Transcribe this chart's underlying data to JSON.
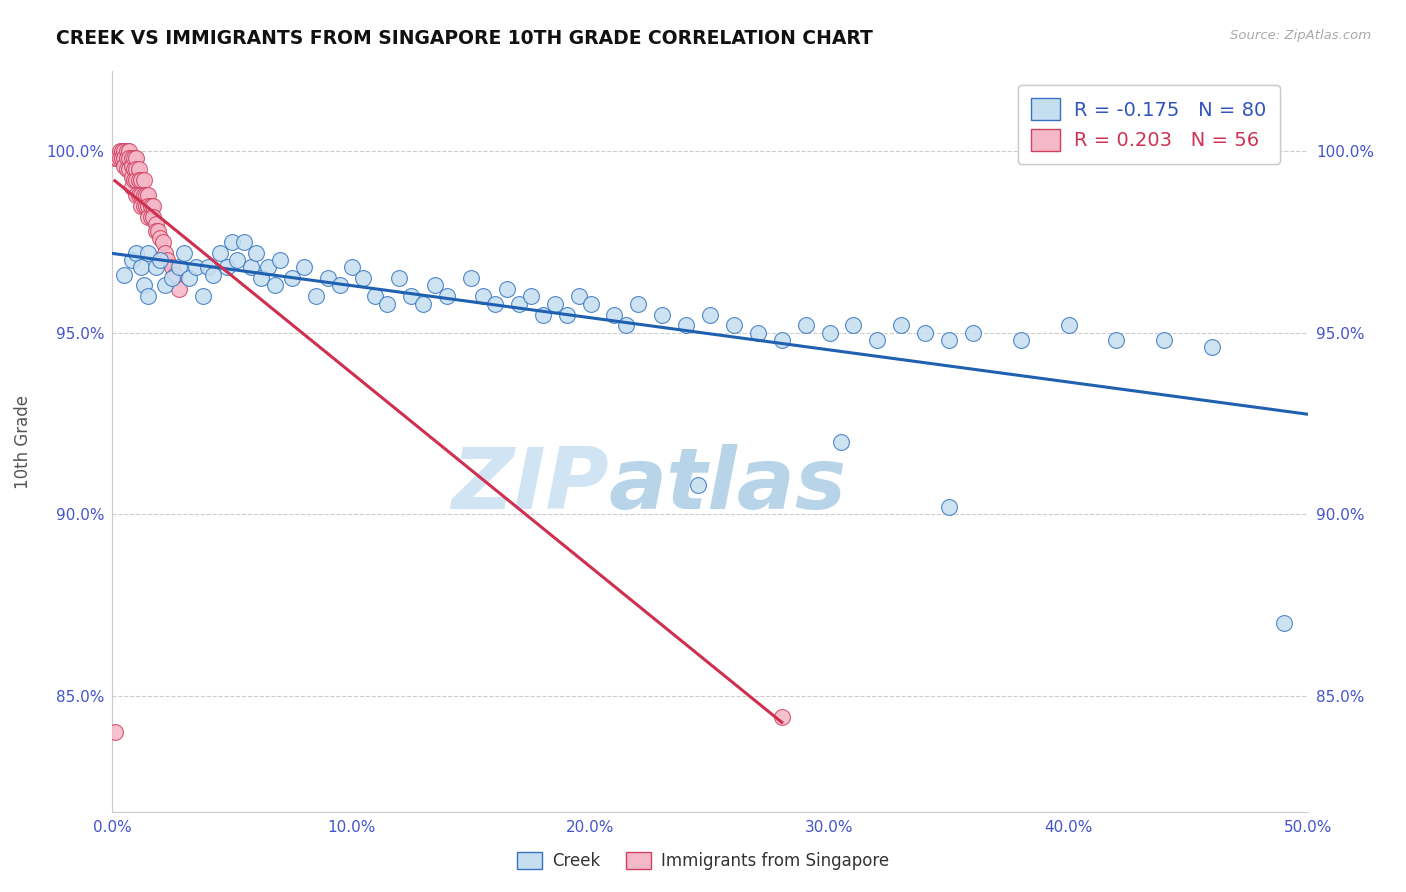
{
  "title": "CREEK VS IMMIGRANTS FROM SINGAPORE 10TH GRADE CORRELATION CHART",
  "source": "Source: ZipAtlas.com",
  "ylabel": "10th Grade",
  "xlabel_legend1": "Creek",
  "xlabel_legend2": "Immigrants from Singapore",
  "R_creek": -0.175,
  "N_creek": 80,
  "R_singapore": 0.203,
  "N_singapore": 56,
  "xlim": [
    0.0,
    0.5
  ],
  "ylim_low": 0.818,
  "ylim_high": 1.022,
  "xtick_labels": [
    "0.0%",
    "10.0%",
    "20.0%",
    "30.0%",
    "40.0%",
    "50.0%"
  ],
  "xtick_vals": [
    0.0,
    0.1,
    0.2,
    0.3,
    0.4,
    0.5
  ],
  "ytick_labels": [
    "85.0%",
    "90.0%",
    "95.0%",
    "100.0%"
  ],
  "ytick_vals": [
    0.85,
    0.9,
    0.95,
    1.0
  ],
  "color_creek_fill": "#c5dff0",
  "color_creek_edge": "#3575c0",
  "color_creek_line": "#2060b0",
  "color_singapore_fill": "#f5b8c8",
  "color_singapore_edge": "#d04060",
  "color_singapore_line": "#d03050",
  "watermark_zip": "ZIP",
  "watermark_atlas": "atlas",
  "background_color": "#ffffff",
  "creek_x": [
    0.005,
    0.008,
    0.01,
    0.012,
    0.013,
    0.015,
    0.015,
    0.018,
    0.02,
    0.022,
    0.025,
    0.028,
    0.03,
    0.032,
    0.035,
    0.038,
    0.04,
    0.042,
    0.045,
    0.048,
    0.05,
    0.052,
    0.055,
    0.058,
    0.06,
    0.062,
    0.065,
    0.068,
    0.07,
    0.075,
    0.08,
    0.085,
    0.09,
    0.095,
    0.1,
    0.105,
    0.11,
    0.115,
    0.12,
    0.125,
    0.13,
    0.135,
    0.14,
    0.15,
    0.155,
    0.16,
    0.165,
    0.17,
    0.175,
    0.18,
    0.185,
    0.19,
    0.195,
    0.2,
    0.21,
    0.215,
    0.22,
    0.23,
    0.24,
    0.25,
    0.26,
    0.27,
    0.28,
    0.29,
    0.3,
    0.31,
    0.32,
    0.33,
    0.34,
    0.35,
    0.36,
    0.38,
    0.4,
    0.42,
    0.44,
    0.46,
    0.245,
    0.305,
    0.35,
    0.49
  ],
  "creek_y": [
    0.966,
    0.97,
    0.972,
    0.968,
    0.963,
    0.972,
    0.96,
    0.968,
    0.97,
    0.963,
    0.965,
    0.968,
    0.972,
    0.965,
    0.968,
    0.96,
    0.968,
    0.966,
    0.972,
    0.968,
    0.975,
    0.97,
    0.975,
    0.968,
    0.972,
    0.965,
    0.968,
    0.963,
    0.97,
    0.965,
    0.968,
    0.96,
    0.965,
    0.963,
    0.968,
    0.965,
    0.96,
    0.958,
    0.965,
    0.96,
    0.958,
    0.963,
    0.96,
    0.965,
    0.96,
    0.958,
    0.962,
    0.958,
    0.96,
    0.955,
    0.958,
    0.955,
    0.96,
    0.958,
    0.955,
    0.952,
    0.958,
    0.955,
    0.952,
    0.955,
    0.952,
    0.95,
    0.948,
    0.952,
    0.95,
    0.952,
    0.948,
    0.952,
    0.95,
    0.948,
    0.95,
    0.948,
    0.952,
    0.948,
    0.948,
    0.946,
    0.908,
    0.92,
    0.902,
    0.87
  ],
  "singapore_x": [
    0.001,
    0.002,
    0.003,
    0.003,
    0.004,
    0.004,
    0.005,
    0.005,
    0.005,
    0.006,
    0.006,
    0.006,
    0.007,
    0.007,
    0.007,
    0.008,
    0.008,
    0.008,
    0.008,
    0.009,
    0.009,
    0.009,
    0.01,
    0.01,
    0.01,
    0.01,
    0.011,
    0.011,
    0.011,
    0.012,
    0.012,
    0.012,
    0.013,
    0.013,
    0.013,
    0.014,
    0.014,
    0.015,
    0.015,
    0.015,
    0.016,
    0.016,
    0.017,
    0.017,
    0.018,
    0.018,
    0.019,
    0.02,
    0.021,
    0.022,
    0.023,
    0.025,
    0.026,
    0.028,
    0.001,
    0.28
  ],
  "singapore_y": [
    0.998,
    0.998,
    1.0,
    0.998,
    1.0,
    0.998,
    1.0,
    0.998,
    0.996,
    1.0,
    0.998,
    0.995,
    1.0,
    0.998,
    0.995,
    0.998,
    0.996,
    0.993,
    0.99,
    0.998,
    0.995,
    0.992,
    0.998,
    0.995,
    0.992,
    0.988,
    0.995,
    0.992,
    0.988,
    0.992,
    0.988,
    0.985,
    0.992,
    0.988,
    0.985,
    0.988,
    0.985,
    0.988,
    0.985,
    0.982,
    0.985,
    0.982,
    0.985,
    0.982,
    0.98,
    0.978,
    0.978,
    0.976,
    0.975,
    0.972,
    0.97,
    0.968,
    0.966,
    0.962,
    0.84,
    0.844
  ]
}
